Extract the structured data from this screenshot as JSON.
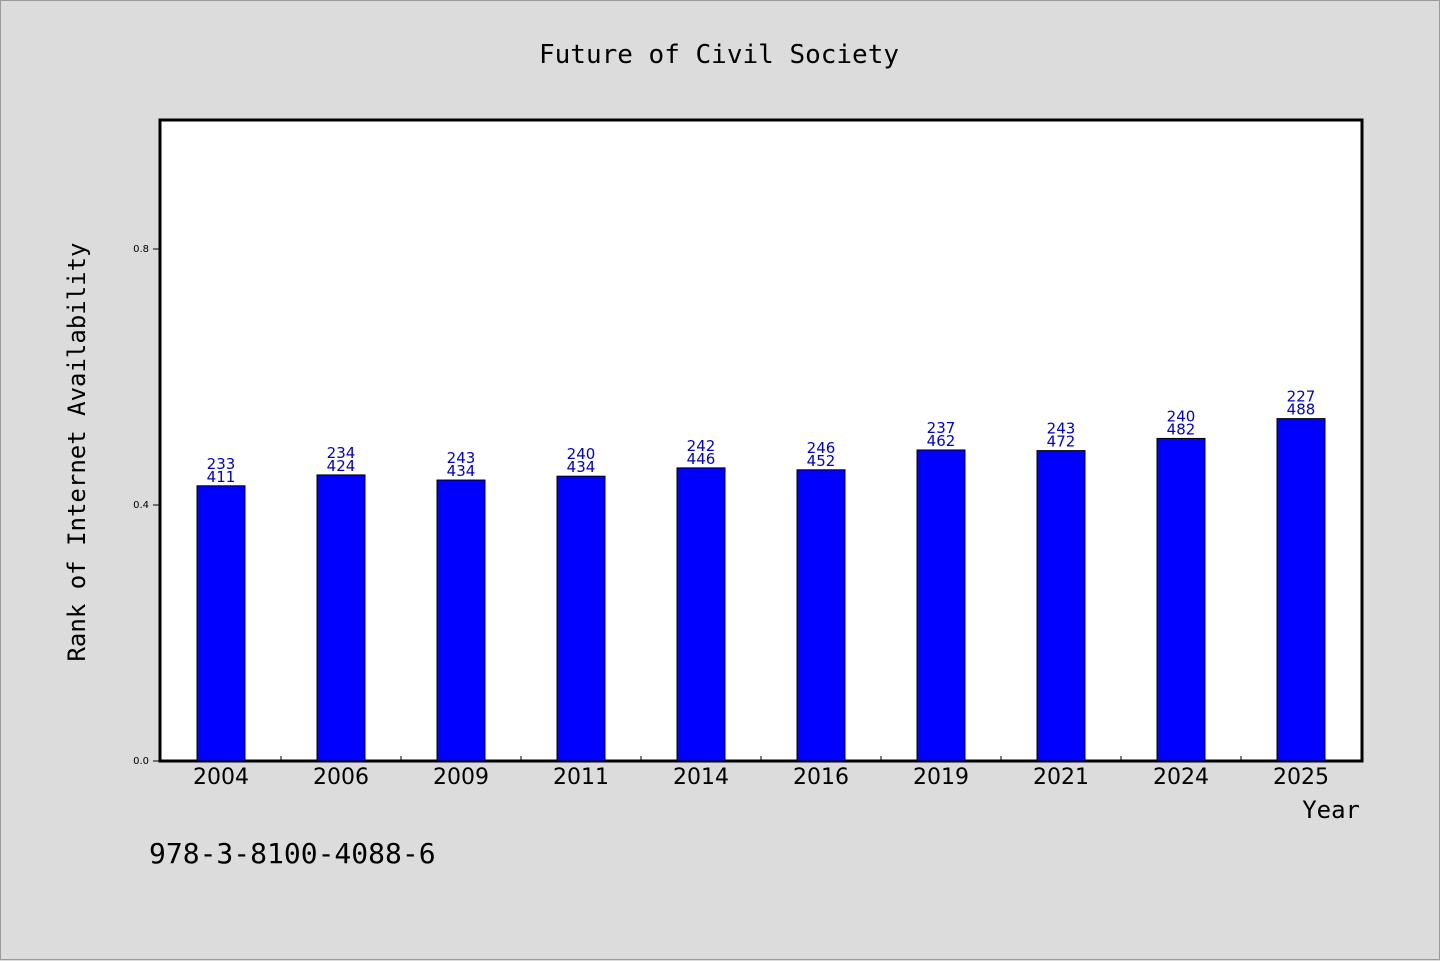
{
  "chart_data": {
    "type": "bar",
    "title": "Future of Civil Society",
    "xlabel": "Year",
    "ylabel": "Rank of Internet Availability",
    "ylim": [
      0,
      1.0
    ],
    "yticks": [
      "0.0",
      "0.4",
      "0.8"
    ],
    "categories": [
      "2004",
      "2006",
      "2009",
      "2011",
      "2014",
      "2016",
      "2019",
      "2021",
      "2024",
      "2025"
    ],
    "values": [
      0.43,
      0.447,
      0.439,
      0.445,
      0.458,
      0.455,
      0.486,
      0.485,
      0.504,
      0.535
    ],
    "labels_top": [
      "233",
      "234",
      "243",
      "240",
      "242",
      "246",
      "237",
      "243",
      "240",
      "227"
    ],
    "labels_bottom": [
      "411",
      "424",
      "434",
      "434",
      "446",
      "452",
      "462",
      "472",
      "482",
      "488"
    ],
    "bar_color": "#0000ff",
    "label_color": "#0000c8",
    "grid": false,
    "legend": "none"
  },
  "footer": {
    "isbn": "978-3-8100-4088-6"
  }
}
